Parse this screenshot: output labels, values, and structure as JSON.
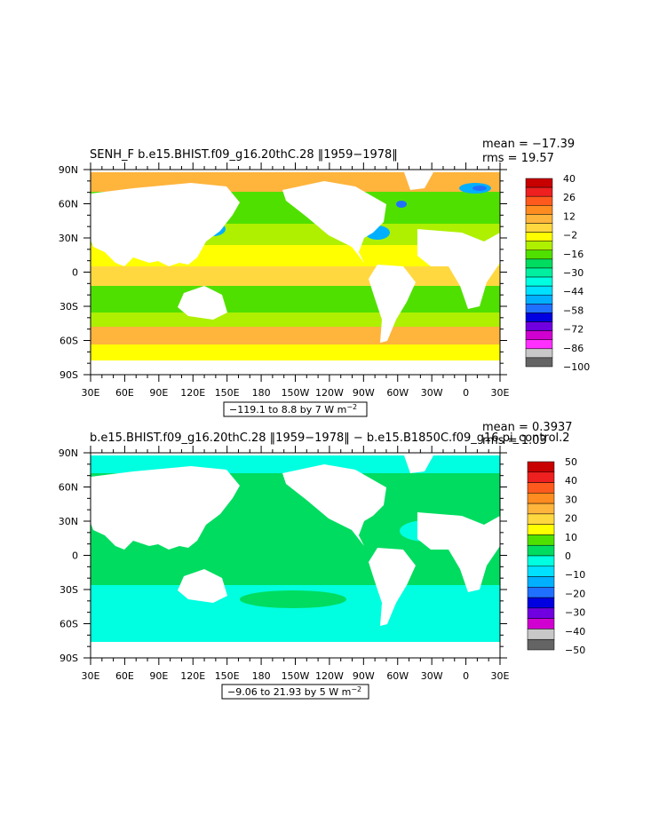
{
  "chart_data": [
    {
      "type": "heatmap",
      "title": "SENH_F  b.e15.BHIST.f09_g16.20thC.28  ‖1959−1978‖",
      "mean_label": "mean = −17.39",
      "rms_label": "rms = 19.57",
      "x_ticks": [
        "30E",
        "60E",
        "90E",
        "120E",
        "150E",
        "180",
        "150W",
        "120W",
        "90W",
        "60W",
        "30W",
        "0",
        "30E"
      ],
      "y_ticks": [
        "90N",
        "60N",
        "30N",
        "0",
        "30S",
        "60S",
        "90S"
      ],
      "range_label": "−119.1 to 8.8 by 7  W m",
      "range_unit_exp": "−2",
      "colorbar_labels": [
        "40",
        "26",
        "12",
        "−2",
        "−16",
        "−30",
        "−44",
        "−58",
        "−72",
        "−86",
        "−100"
      ],
      "colorbar_colors": [
        "#c80000",
        "#ee2020",
        "#ff5a1e",
        "#ff8c20",
        "#ffb43c",
        "#ffd840",
        "#ffff00",
        "#aef000",
        "#50e000",
        "#00dc60",
        "#00f0a0",
        "#00ffe0",
        "#00e0ff",
        "#00b0ff",
        "#2070ff",
        "#0000e0",
        "#7000e0",
        "#d000d0",
        "#ff30ff",
        "#c8c8c8",
        "#646464"
      ]
    },
    {
      "type": "heatmap",
      "title": "b.e15.BHIST.f09_g16.20thC.28  ‖1959−1978‖  −  b.e15.B1850C.f09_g16.pi_control.2",
      "mean_label": "mean = 0.3937",
      "rms_label": "rms = 1.03",
      "x_ticks": [
        "30E",
        "60E",
        "90E",
        "120E",
        "150E",
        "180",
        "150W",
        "120W",
        "90W",
        "60W",
        "30W",
        "0",
        "30E"
      ],
      "y_ticks": [
        "90N",
        "60N",
        "30N",
        "0",
        "30S",
        "60S",
        "90S"
      ],
      "range_label": "−9.06 to 21.93 by 5  W m",
      "range_unit_exp": "−2",
      "colorbar_labels": [
        "50",
        "40",
        "30",
        "20",
        "10",
        "0",
        "−10",
        "−20",
        "−30",
        "−40",
        "−50"
      ],
      "colorbar_colors": [
        "#c80000",
        "#ee2020",
        "#ff5a1e",
        "#ff8c20",
        "#ffb43c",
        "#ffd840",
        "#ffff00",
        "#50e000",
        "#00dc60",
        "#00ffe0",
        "#00e0ff",
        "#00b0ff",
        "#2070ff",
        "#0000e0",
        "#7000e0",
        "#d000d0",
        "#c8c8c8",
        "#646464"
      ]
    }
  ]
}
